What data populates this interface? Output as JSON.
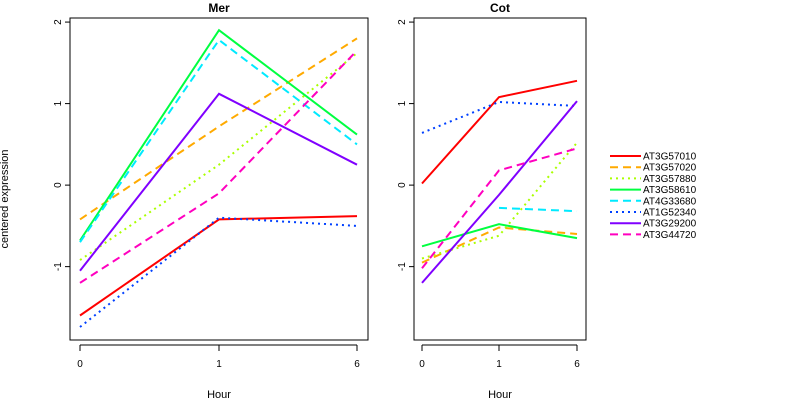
{
  "chart_data": {
    "type": "line",
    "ylabel": "centered expression",
    "xlabel": "Hour",
    "x_ticks": [
      "0",
      "1",
      "6"
    ],
    "ylim": [
      -1.9,
      2.05
    ],
    "y_ticks": [
      -1,
      0,
      1,
      2
    ],
    "legend_position": "right",
    "legend": [
      {
        "name": "AT3G57010",
        "color": "#ff0000",
        "dash": "solid"
      },
      {
        "name": "AT3G57020",
        "color": "#ffaa00",
        "dash": "dashed"
      },
      {
        "name": "AT3G57880",
        "color": "#aaff00",
        "dash": "dotted"
      },
      {
        "name": "AT3G58610",
        "color": "#00ff40",
        "dash": "solid"
      },
      {
        "name": "AT4G33680",
        "color": "#00eaff",
        "dash": "dashed"
      },
      {
        "name": "AT1G52340",
        "color": "#0040ff",
        "dash": "dotted"
      },
      {
        "name": "AT3G29200",
        "color": "#8000ff",
        "dash": "solid"
      },
      {
        "name": "AT3G44720",
        "color": "#ff00bf",
        "dash": "dashed"
      }
    ],
    "panels": [
      {
        "title": "Mer",
        "series": [
          {
            "name": "AT3G57010",
            "values": [
              -1.6,
              -0.42,
              -0.38
            ]
          },
          {
            "name": "AT3G57020",
            "values": [
              -0.42,
              0.72,
              1.8
            ]
          },
          {
            "name": "AT3G57880",
            "values": [
              -0.92,
              0.25,
              1.62
            ]
          },
          {
            "name": "AT3G58610",
            "values": [
              -0.68,
              1.9,
              0.62
            ]
          },
          {
            "name": "AT4G33680",
            "values": [
              -0.7,
              1.78,
              0.5
            ]
          },
          {
            "name": "AT1G52340",
            "values": [
              -1.74,
              -0.4,
              -0.5
            ]
          },
          {
            "name": "AT3G29200",
            "values": [
              -1.05,
              1.12,
              0.25
            ]
          },
          {
            "name": "AT3G44720",
            "values": [
              -1.2,
              -0.1,
              1.65
            ]
          }
        ]
      },
      {
        "title": "Cot",
        "series": [
          {
            "name": "AT3G57010",
            "values": [
              0.02,
              1.08,
              1.28
            ]
          },
          {
            "name": "AT3G57020",
            "values": [
              -0.95,
              -0.52,
              -0.6
            ]
          },
          {
            "name": "AT3G57880",
            "values": [
              -0.9,
              -0.62,
              0.52
            ]
          },
          {
            "name": "AT3G58610",
            "values": [
              -0.75,
              -0.48,
              -0.65
            ]
          },
          {
            "name": "AT4G33680",
            "values": [
              null,
              -0.28,
              -0.32
            ]
          },
          {
            "name": "AT1G52340",
            "values": [
              0.64,
              1.02,
              0.97
            ]
          },
          {
            "name": "AT3G29200",
            "values": [
              -1.2,
              -0.12,
              1.03
            ]
          },
          {
            "name": "AT3G44720",
            "values": [
              -1.02,
              0.18,
              0.45
            ]
          }
        ]
      }
    ]
  }
}
